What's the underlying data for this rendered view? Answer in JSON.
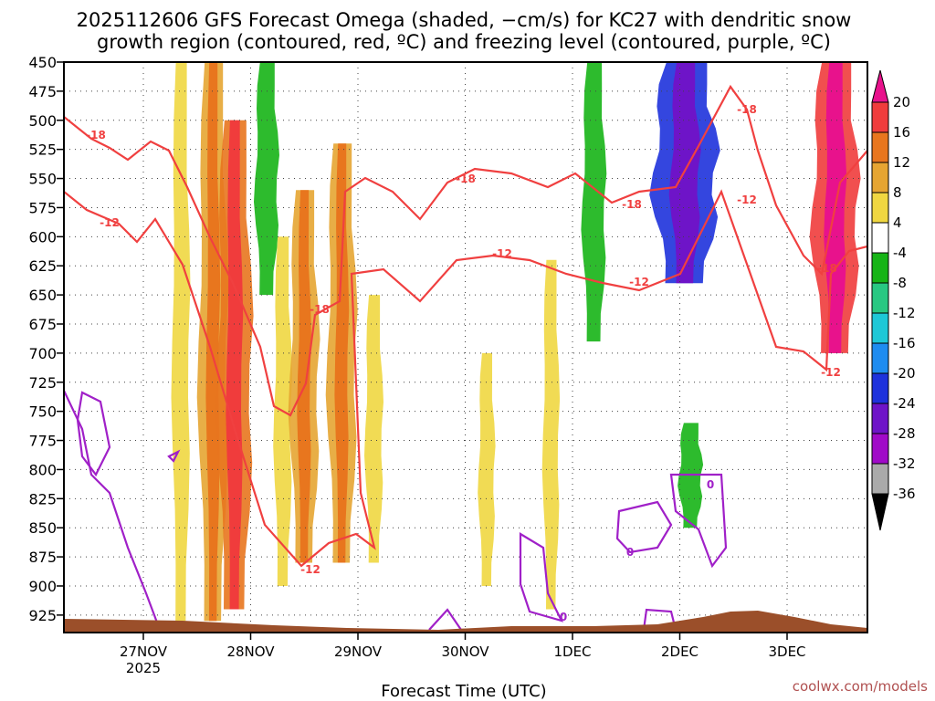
{
  "chart_data": {
    "type": "heatmap",
    "title_lines": [
      "2025112606 GFS Forecast Omega (shaded, −cm/s) for KC27 with dendritic snow",
      "growth region (contoured, red, ºC) and freezing level (contoured, purple, ºC)"
    ],
    "xlabel": "Forecast Time (UTC)",
    "credit": "coolwx.com/models",
    "x_ticks": [
      "27NOV",
      "28NOV",
      "29NOV",
      "30NOV",
      "1DEC",
      "2DEC",
      "3DEC"
    ],
    "x_year": "2025",
    "y_ticks": [
      "450",
      "475",
      "500",
      "525",
      "550",
      "575",
      "600",
      "625",
      "650",
      "675",
      "700",
      "725",
      "750",
      "775",
      "800",
      "825",
      "850",
      "875",
      "900",
      "925"
    ],
    "y_range": [
      450,
      940
    ],
    "grid": true,
    "colorbar": {
      "labels": [
        "20",
        "16",
        "12",
        "8",
        "4",
        "-4",
        "-8",
        "-12",
        "-16",
        "-20",
        "-24",
        "-28",
        "-32",
        "-36"
      ],
      "colors": [
        "#e8128c",
        "#f03c3c",
        "#e8761e",
        "#e6a532",
        "#f0d741",
        "#ffffff",
        "#16b416",
        "#28c882",
        "#1ec8d7",
        "#1e8cf0",
        "#1e32dc",
        "#6e14c8",
        "#a00ac8",
        "#aaaaaa"
      ]
    },
    "contours": [
      {
        "label": "-18",
        "color": "#f04040",
        "where": "red dendritic growth contour"
      },
      {
        "label": "-12",
        "color": "#f04040",
        "where": "red dendritic growth contour"
      },
      {
        "label": "0",
        "color": "#a020c8",
        "where": "purple freezing level contour"
      }
    ],
    "omega_regions": [
      {
        "t": 0.35,
        "p_top": 450,
        "p_bot": 930,
        "value": 6
      },
      {
        "t": 0.65,
        "p_top": 450,
        "p_bot": 930,
        "value": 10
      },
      {
        "t": 0.85,
        "p_top": 500,
        "p_bot": 920,
        "value": 12
      },
      {
        "t": 1.15,
        "p_top": 450,
        "p_bot": 650,
        "value": -8
      },
      {
        "t": 1.3,
        "p_top": 600,
        "p_bot": 900,
        "value": 6
      },
      {
        "t": 1.5,
        "p_top": 560,
        "p_bot": 880,
        "value": 10
      },
      {
        "t": 1.85,
        "p_top": 520,
        "p_bot": 880,
        "value": 10
      },
      {
        "t": 2.15,
        "p_top": 650,
        "p_bot": 880,
        "value": 6
      },
      {
        "t": 3.2,
        "p_top": 700,
        "p_bot": 900,
        "value": 5
      },
      {
        "t": 3.8,
        "p_top": 620,
        "p_bot": 920,
        "value": 5
      },
      {
        "t": 4.2,
        "p_top": 450,
        "p_bot": 690,
        "value": -8
      },
      {
        "t": 5.05,
        "p_top": 450,
        "p_bot": 640,
        "value": -24
      },
      {
        "t": 5.1,
        "p_top": 760,
        "p_bot": 850,
        "value": -8
      },
      {
        "t": 6.45,
        "p_top": 450,
        "p_bot": 700,
        "value": 16
      }
    ]
  }
}
